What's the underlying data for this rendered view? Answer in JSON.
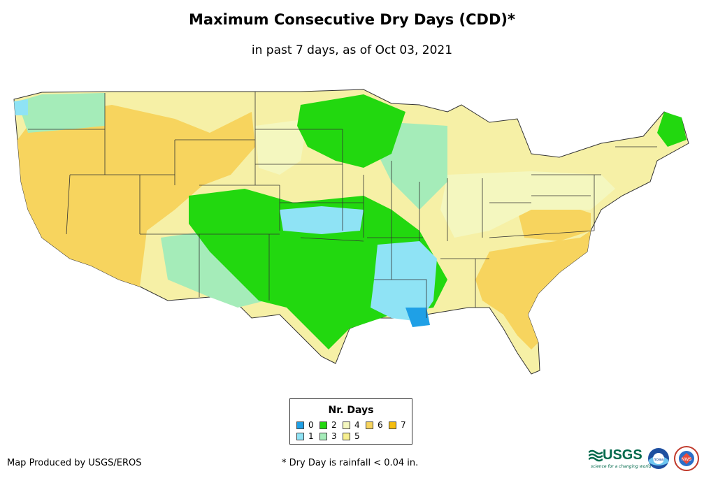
{
  "title": "Maximum Consecutive Dry Days (CDD)*",
  "subtitle": "in past 7 days, as of Oct 03, 2021",
  "legend": {
    "title": "Nr. Days",
    "items": [
      {
        "label": "0",
        "color": "#1fa0e6"
      },
      {
        "label": "1",
        "color": "#8fe3f5"
      },
      {
        "label": "2",
        "color": "#22d80f"
      },
      {
        "label": "3",
        "color": "#a5ecb9"
      },
      {
        "label": "4",
        "color": "#f4f7bf"
      },
      {
        "label": "5",
        "color": "#f7ef8f"
      },
      {
        "label": "6",
        "color": "#f7d45e"
      },
      {
        "label": "7",
        "color": "#f5bd0f"
      }
    ]
  },
  "footer": {
    "credit": "Map Produced by USGS/EROS",
    "note": "* Dry Day is rainfall < 0.04 in."
  },
  "logos": {
    "usgs": "USGS",
    "usgs_tagline": "science for a changing world",
    "noaa": "noaa",
    "nws": "NWS"
  }
}
